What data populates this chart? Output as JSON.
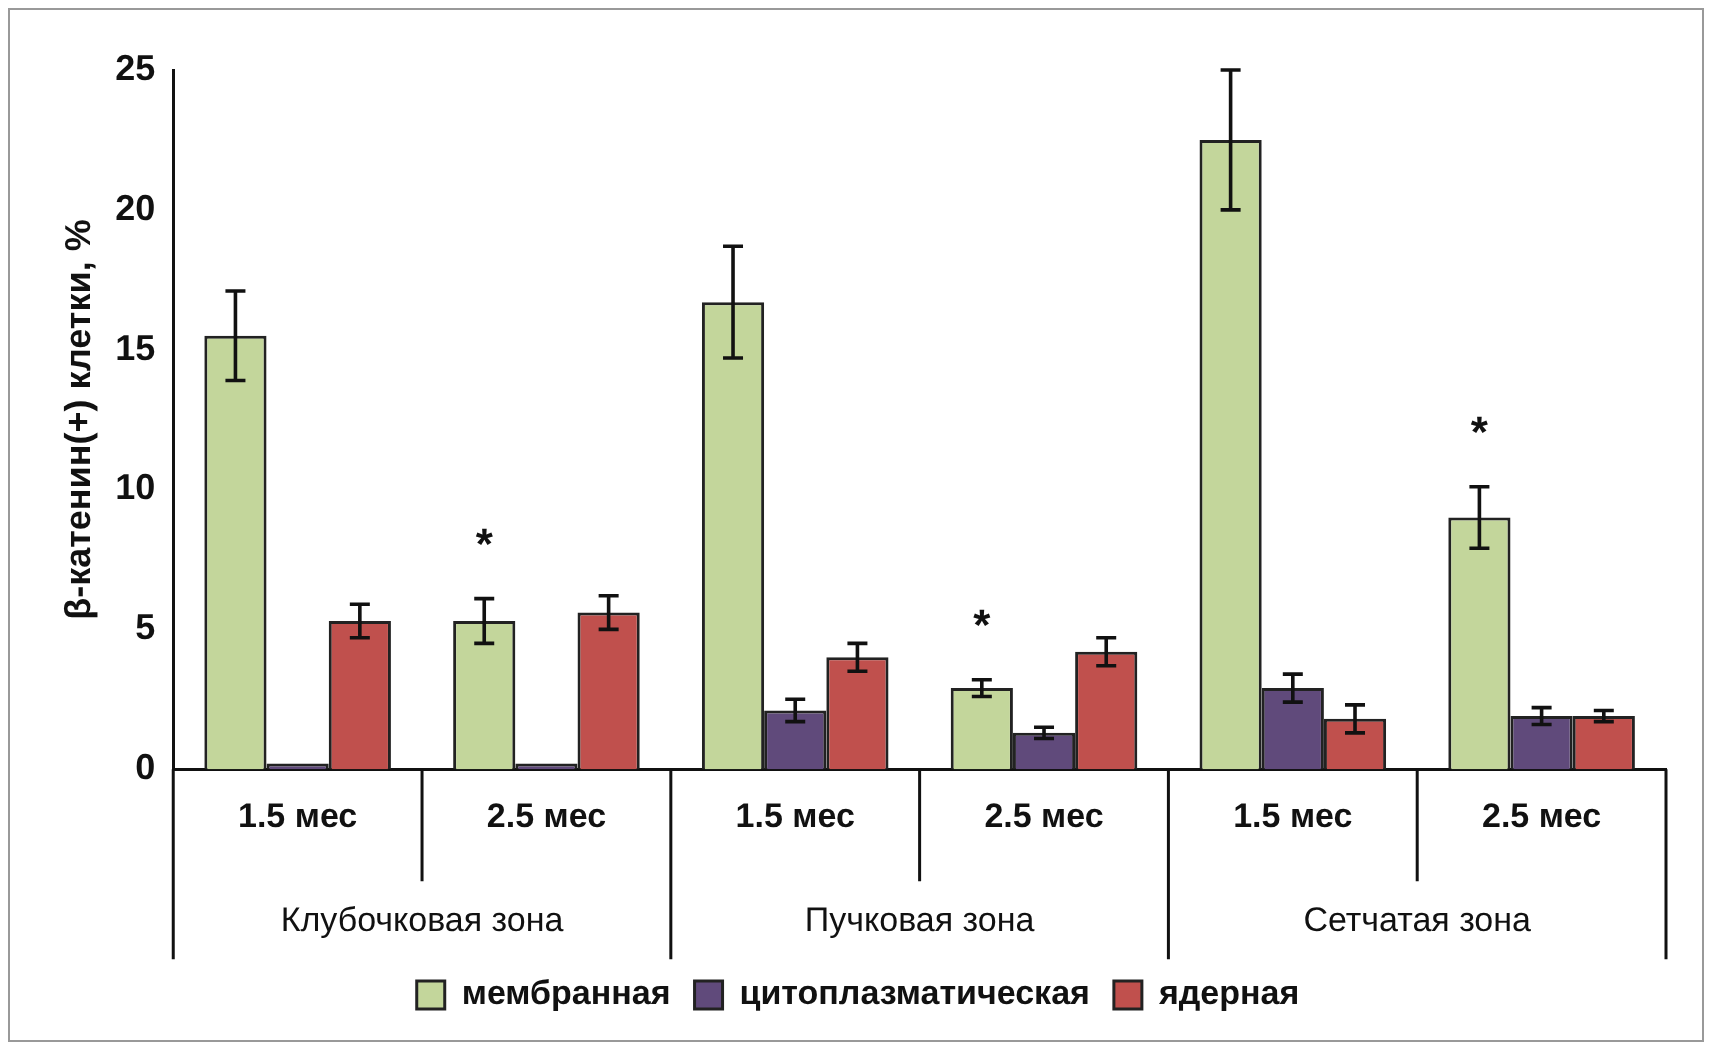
{
  "chart_data": {
    "type": "bar",
    "ylabel": "β-катенин(+) клетки, %",
    "categories": [
      "1.5 мес",
      "2.5 мес",
      "1.5 мес",
      "2.5 мес",
      "1.5 мес",
      "2.5 мес"
    ],
    "series": [
      {
        "name": "мембранная",
        "color": "#c3d69b",
        "values": [
          15.5,
          5.3,
          16.7,
          2.9,
          22.5,
          9.0
        ],
        "errors": [
          1.6,
          0.8,
          2.0,
          0.3,
          2.5,
          1.1
        ]
      },
      {
        "name": "цитоплазматическая",
        "color": "#604a7b",
        "values": [
          0.2,
          0.2,
          2.1,
          1.3,
          2.9,
          1.9
        ],
        "errors": [
          null,
          null,
          0.4,
          0.2,
          0.5,
          0.3
        ]
      },
      {
        "name": "ядерная",
        "color": "#c0504d",
        "values": [
          5.3,
          5.6,
          4.0,
          4.2,
          1.8,
          1.9
        ],
        "errors": [
          0.6,
          0.6,
          0.5,
          0.5,
          0.5,
          0.2
        ]
      }
    ],
    "ylim": [
      0,
      25
    ],
    "yticks": [
      0,
      5,
      10,
      15,
      20,
      25
    ],
    "grid": false,
    "legend": "bottom",
    "annotations": [
      "Клубочковая зона",
      "Пучковая зона",
      "Сетчатая зона",
      "*",
      "*",
      "*"
    ]
  }
}
